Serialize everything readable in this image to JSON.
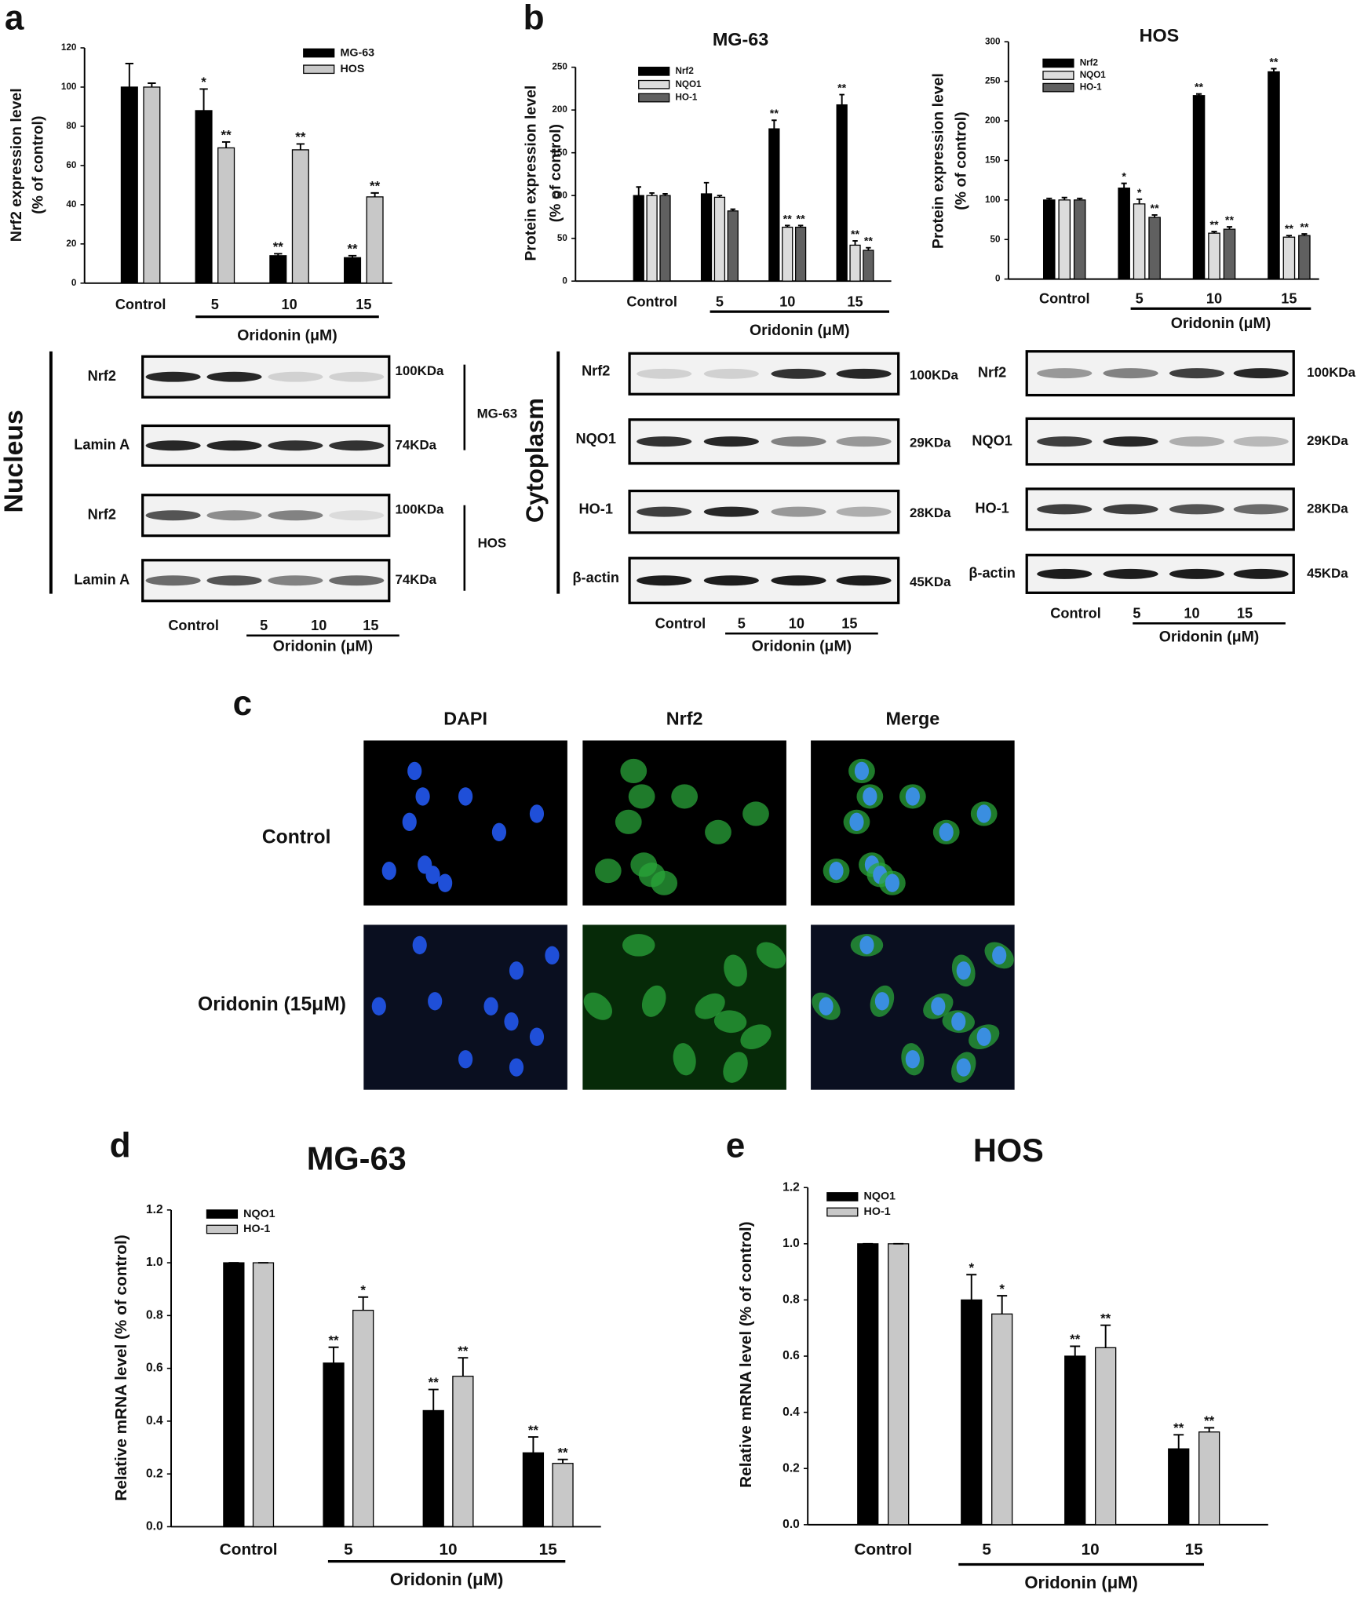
{
  "panel_labels": [
    "a",
    "b",
    "c",
    "d",
    "e"
  ],
  "chart_data": [
    {
      "type": "bar",
      "ylabel": [
        "Nrf2  expression level",
        "(% of control)"
      ],
      "categories": [
        "Control",
        "5",
        "10",
        "15"
      ],
      "group_label": "Oridonin (μM)",
      "ylim": [
        0,
        120
      ],
      "yticks": [
        0,
        20,
        40,
        60,
        80,
        100,
        120
      ],
      "series": [
        {
          "name": "MG-63",
          "color": "#000000",
          "values": [
            100,
            88,
            14,
            13
          ],
          "errors": [
            12,
            11,
            1,
            1
          ],
          "annotations": [
            null,
            "*",
            "**",
            "**"
          ]
        },
        {
          "name": "HOS",
          "color": "#c8c8c8",
          "values": [
            100,
            69,
            68,
            44
          ],
          "errors": [
            2,
            3,
            3,
            2
          ],
          "annotations": [
            null,
            "**",
            "**",
            "**"
          ]
        }
      ]
    },
    {
      "type": "bar",
      "title": "MG-63",
      "ylabel": [
        "Protein expression level",
        "(% of control)"
      ],
      "categories": [
        "Control",
        "5",
        "10",
        "15"
      ],
      "group_label": "Oridonin (μM)",
      "ylim": [
        0,
        250
      ],
      "yticks": [
        0,
        50,
        100,
        150,
        200,
        250
      ],
      "series": [
        {
          "name": "Nrf2",
          "color": "#000000",
          "values": [
            100,
            102,
            178,
            206
          ],
          "errors": [
            10,
            13,
            10,
            12
          ],
          "annotations": [
            null,
            null,
            "**",
            "**"
          ]
        },
        {
          "name": "NQO1",
          "color": "#dcdcdc",
          "values": [
            100,
            98,
            63,
            42
          ],
          "errors": [
            3,
            2,
            2,
            5
          ],
          "annotations": [
            null,
            null,
            "**",
            "**"
          ]
        },
        {
          "name": "HO-1",
          "color": "#606060",
          "values": [
            100,
            82,
            63,
            36
          ],
          "errors": [
            2,
            2,
            2,
            3
          ],
          "annotations": [
            null,
            null,
            "**",
            "**"
          ]
        }
      ]
    },
    {
      "type": "bar",
      "title": "HOS",
      "ylabel": [
        "Protein expression level",
        "(% of control)"
      ],
      "categories": [
        "Control",
        "5",
        "10",
        "15"
      ],
      "group_label": "Oridonin (μM)",
      "ylim": [
        0,
        300
      ],
      "yticks": [
        0,
        50,
        100,
        150,
        200,
        250,
        300
      ],
      "series": [
        {
          "name": "Nrf2",
          "color": "#000000",
          "values": [
            100,
            115,
            232,
            262
          ],
          "errors": [
            2,
            6,
            2,
            4
          ],
          "annotations": [
            null,
            "*",
            "**",
            "**"
          ]
        },
        {
          "name": "NQO1",
          "color": "#dcdcdc",
          "values": [
            100,
            95,
            58,
            53
          ],
          "errors": [
            3,
            6,
            2,
            2
          ],
          "annotations": [
            null,
            "*",
            "**",
            "**"
          ]
        },
        {
          "name": "HO-1",
          "color": "#606060",
          "values": [
            100,
            78,
            63,
            55
          ],
          "errors": [
            2,
            3,
            3,
            2
          ],
          "annotations": [
            null,
            "**",
            "**",
            "**"
          ]
        }
      ]
    },
    {
      "type": "bar",
      "title": "MG-63",
      "ylabel": [
        "Relative mRNA level (% of control)"
      ],
      "categories": [
        "Control",
        "5",
        "10",
        "15"
      ],
      "group_label": "Oridonin (μM)",
      "ylim": [
        0,
        1.2
      ],
      "yticks": [
        {
          "value": 0,
          "label": "0.0"
        },
        0.2,
        0.4,
        0.6,
        0.8,
        {
          "value": 1,
          "label": "1.0"
        },
        1.2
      ],
      "series": [
        {
          "name": "NQO1",
          "color": "#000000",
          "values": [
            1,
            0.62,
            0.44,
            0.28
          ],
          "errors": [
            0,
            0.06,
            0.08,
            0.06
          ],
          "annotations": [
            null,
            "**",
            "**",
            "**"
          ]
        },
        {
          "name": "HO-1",
          "color": "#c8c8c8",
          "values": [
            1,
            0.82,
            0.57,
            0.24
          ],
          "errors": [
            0,
            0.05,
            0.07,
            0.015
          ],
          "annotations": [
            null,
            "*",
            "**",
            "**"
          ]
        }
      ]
    },
    {
      "type": "bar",
      "title": "HOS",
      "ylabel": [
        "Relative mRNA level (% of control)"
      ],
      "categories": [
        "Control",
        "5",
        "10",
        "15"
      ],
      "group_label": "Oridonin (μM)",
      "ylim": [
        0,
        1.2
      ],
      "yticks": [
        {
          "value": 0,
          "label": "0.0"
        },
        0.2,
        0.4,
        0.6,
        0.8,
        {
          "value": 1,
          "label": "1.0"
        },
        1.2
      ],
      "series": [
        {
          "name": "NQO1",
          "color": "#000000",
          "values": [
            1,
            0.8,
            0.6,
            0.27
          ],
          "errors": [
            0,
            0.09,
            0.035,
            0.05
          ],
          "annotations": [
            null,
            "*",
            "**",
            "**"
          ]
        },
        {
          "name": "HO-1",
          "color": "#c8c8c8",
          "values": [
            1,
            0.75,
            0.63,
            0.33
          ],
          "errors": [
            0,
            0.065,
            0.08,
            0.015
          ],
          "annotations": [
            null,
            "*",
            "**",
            "**"
          ]
        }
      ]
    }
  ],
  "blots": {
    "nucleus": {
      "compartment": "Nucleus",
      "cell_lines": [
        "MG-63",
        "HOS"
      ],
      "rows": [
        {
          "protein": "Nrf2",
          "size": "100KDa"
        },
        {
          "protein": "Lamin A",
          "size": "74KDa"
        }
      ]
    },
    "cytoplasm": {
      "compartment": "Cytoplasm",
      "rows": [
        {
          "protein": "Nrf2",
          "size": "100KDa"
        },
        {
          "protein": "NQO1",
          "size": "29KDa"
        },
        {
          "protein": "HO-1",
          "size": "28KDa"
        },
        {
          "protein": "β-actin",
          "size": "45KDa"
        }
      ]
    }
  },
  "lanes": {
    "labels": [
      "Control",
      "5",
      "10",
      "15"
    ],
    "treatment": "Oridonin (μM)"
  },
  "microscopy": {
    "columns": [
      "DAPI",
      "Nrf2",
      "Merge"
    ],
    "rows": [
      "Control",
      "Oridonin (15μM)"
    ]
  }
}
